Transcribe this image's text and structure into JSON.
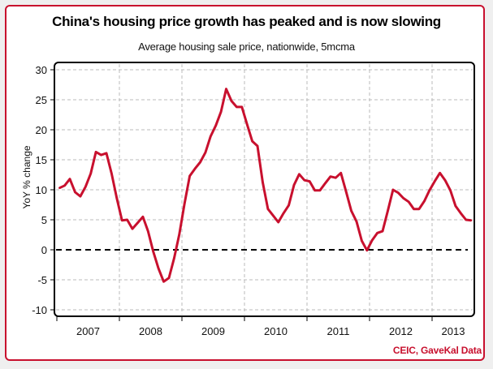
{
  "colors": {
    "series": "#c8102e",
    "border": "#c8102e",
    "source": "#c8102e",
    "grid": "#bbbbbb",
    "zero_line": "#000000"
  },
  "footer": {
    "source": "CEIC, GaveKal Data"
  },
  "chart_data": {
    "type": "line",
    "title": "China's housing price growth has peaked and is now slowing",
    "subtitle": "Average housing sale price, nationwide, 5mcma",
    "xlabel": "",
    "ylabel": "YoY % change",
    "ylim": [
      -11,
      31
    ],
    "yticks": [
      30,
      25,
      20,
      15,
      10,
      5,
      0,
      -5,
      -10
    ],
    "ytick_labels": [
      "30",
      "25",
      "20",
      "15",
      "10",
      "5",
      "0",
      "-5",
      "-10"
    ],
    "x_categories": [
      "2007",
      "2008",
      "2009",
      "2010",
      "2011",
      "2012",
      "2013"
    ],
    "grid": true,
    "reference_line": {
      "y": 0,
      "style": "dashed"
    },
    "legend": "none",
    "series": [
      {
        "name": "Average housing sale price YoY % (5mcma)",
        "start": "2007-01",
        "frequency": "monthly",
        "values": [
          10.3,
          10.7,
          11.8,
          9.6,
          8.9,
          10.5,
          12.7,
          16.3,
          15.8,
          16.1,
          12.7,
          8.6,
          4.9,
          5.0,
          3.5,
          4.5,
          5.5,
          3.1,
          -0.3,
          -3.1,
          -5.3,
          -4.7,
          -1.4,
          2.6,
          7.7,
          12.3,
          13.5,
          14.6,
          16.2,
          18.9,
          20.7,
          23.0,
          26.8,
          24.8,
          23.8,
          23.8,
          20.9,
          18.1,
          17.3,
          11.2,
          6.8,
          5.7,
          4.6,
          6.1,
          7.4,
          10.8,
          12.6,
          11.6,
          11.4,
          9.9,
          9.9,
          11.1,
          12.2,
          12.0,
          12.8,
          9.7,
          6.5,
          4.7,
          1.5,
          -0.1,
          1.6,
          2.8,
          3.1,
          6.5,
          10.0,
          9.5,
          8.6,
          8.0,
          6.8,
          6.8,
          8.1,
          9.9,
          11.4,
          12.8,
          11.6,
          9.9,
          7.3,
          6.1,
          5.0,
          4.9
        ]
      }
    ]
  }
}
